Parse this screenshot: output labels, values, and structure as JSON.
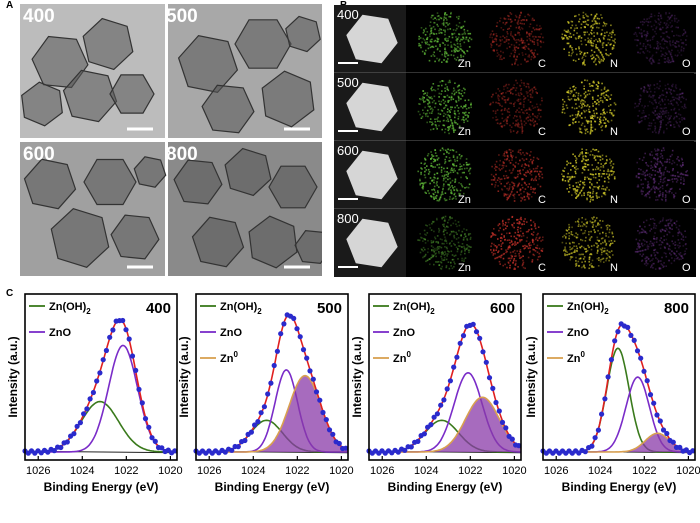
{
  "panel_labels": {
    "a": "A",
    "b": "B",
    "c": "C"
  },
  "panel_a": {
    "images": [
      {
        "label": "400"
      },
      {
        "label": "500"
      },
      {
        "label": "600"
      },
      {
        "label": "800"
      }
    ]
  },
  "panel_b": {
    "rows": [
      {
        "label": "400"
      },
      {
        "label": "500"
      },
      {
        "label": "600"
      },
      {
        "label": "800"
      }
    ],
    "elements": [
      "Zn",
      "C",
      "N",
      "O"
    ],
    "colors": {
      "Zn": "#63c03a",
      "C": "#c8322a",
      "N": "#d8d02a",
      "O": "#7a3a9a"
    }
  },
  "chart_data": [
    {
      "type": "line",
      "title": "400",
      "xlabel": "Binding Energy (eV)",
      "ylabel": "Intensity (a.u.)",
      "xlim": [
        1026.6,
        1019.7
      ],
      "xticks": [
        1026,
        1024,
        1022,
        1020
      ],
      "legend": [
        "Zn(OH)2",
        "ZnO"
      ],
      "series": [
        {
          "name": "Zn(OH)2",
          "color": "#3a7a1c",
          "center": 1023.2,
          "fwhm": 2.0,
          "height": 0.35
        },
        {
          "name": "ZnO",
          "color": "#7a2cc8",
          "center": 1022.15,
          "fwhm": 1.55,
          "height": 0.74
        }
      ]
    },
    {
      "type": "line",
      "title": "500",
      "xlabel": "Binding Energy (eV)",
      "ylabel": "Intensity (a.u.)",
      "xlim": [
        1026.6,
        1019.7
      ],
      "xticks": [
        1026,
        1024,
        1022,
        1020
      ],
      "legend": [
        "Zn(OH)2",
        "ZnO",
        "Zn0"
      ],
      "series": [
        {
          "name": "Zn(OH)2",
          "color": "#3a7a1c",
          "center": 1023.4,
          "fwhm": 1.7,
          "height": 0.22
        },
        {
          "name": "ZnO",
          "color": "#7a2cc8",
          "center": 1022.5,
          "fwhm": 1.2,
          "height": 0.57
        },
        {
          "name": "Zn0",
          "color": "#d9a050",
          "center": 1021.65,
          "fwhm": 1.7,
          "height": 0.53
        }
      ]
    },
    {
      "type": "line",
      "title": "600",
      "xlabel": "Binding Energy (eV)",
      "ylabel": "Intensity (a.u.)",
      "xlim": [
        1026.6,
        1019.7
      ],
      "xticks": [
        1026,
        1024,
        1022,
        1020
      ],
      "legend": [
        "Zn(OH)2",
        "ZnO",
        "Zn0"
      ],
      "series": [
        {
          "name": "Zn(OH)2",
          "color": "#3a7a1c",
          "center": 1023.3,
          "fwhm": 1.8,
          "height": 0.22
        },
        {
          "name": "ZnO",
          "color": "#7a2cc8",
          "center": 1022.1,
          "fwhm": 1.5,
          "height": 0.55
        },
        {
          "name": "Zn0",
          "color": "#d9a050",
          "center": 1021.45,
          "fwhm": 1.8,
          "height": 0.38
        }
      ]
    },
    {
      "type": "line",
      "title": "800",
      "xlabel": "Binding Energy (eV)",
      "ylabel": "Intensity (a.u.)",
      "xlim": [
        1026.6,
        1019.7
      ],
      "xticks": [
        1026,
        1024,
        1022,
        1020
      ],
      "legend": [
        "Zn(OH)2",
        "ZnO",
        "Zn0"
      ],
      "series": [
        {
          "name": "Zn(OH)2",
          "color": "#3a7a1c",
          "center": 1023.2,
          "fwhm": 1.2,
          "height": 0.72
        },
        {
          "name": "ZnO",
          "color": "#7a2cc8",
          "center": 1022.3,
          "fwhm": 1.25,
          "height": 0.52
        },
        {
          "name": "Zn0",
          "color": "#d9a050",
          "center": 1021.4,
          "fwhm": 1.3,
          "height": 0.13
        }
      ]
    }
  ]
}
